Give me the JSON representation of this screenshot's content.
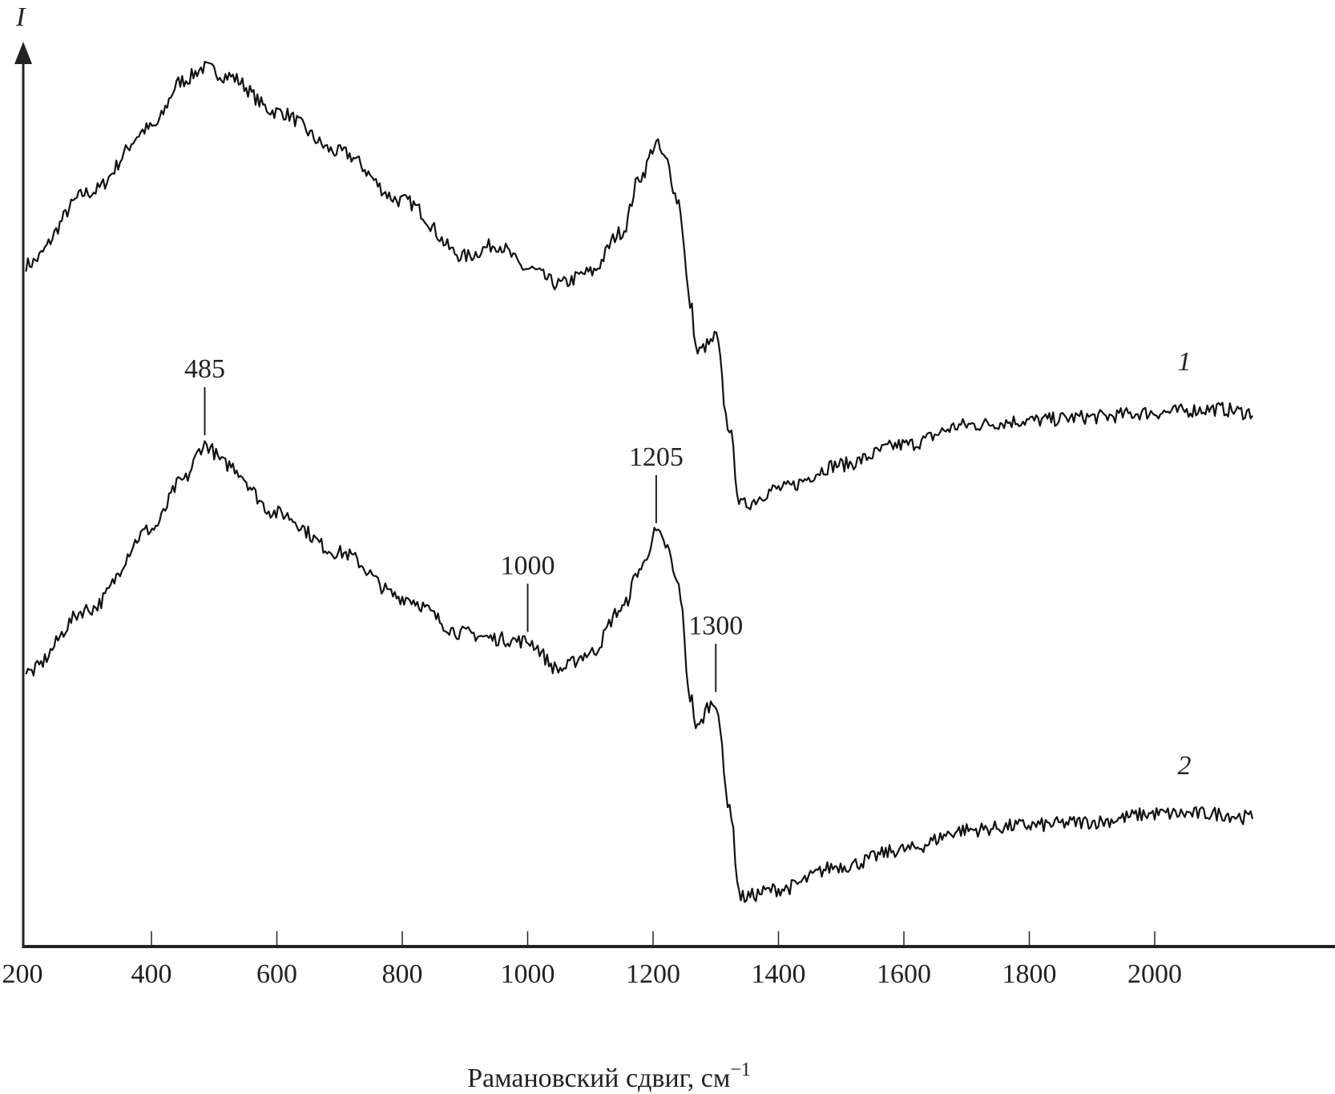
{
  "chart_data": {
    "type": "line",
    "title": "",
    "xlabel": "Рамановский сдвиг, см",
    "xlabel_superscript": "−1",
    "ylabel": "I",
    "xlim": [
      200,
      2157
    ],
    "ylim": [
      0,
      100
    ],
    "y_units": "arbitrary (no tick labels)",
    "grid": false,
    "x_ticks": [
      200,
      400,
      600,
      800,
      1000,
      1200,
      1400,
      1600,
      1800,
      2000
    ],
    "x_tick_labels": [
      "200",
      "400",
      "600",
      "800",
      "1000",
      "1200",
      "1400",
      "1600",
      "1800",
      "2000"
    ],
    "line_color": "#111111",
    "x": [
      200,
      300,
      400,
      450,
      485,
      520,
      600,
      700,
      800,
      900,
      950,
      1000,
      1050,
      1100,
      1150,
      1180,
      1205,
      1220,
      1240,
      1260,
      1270,
      1290,
      1300,
      1320,
      1340,
      1400,
      1500,
      1600,
      1700,
      1800,
      1900,
      2000,
      2100,
      2150
    ],
    "series": [
      {
        "name": "1",
        "values": [
          75.9,
          83.9,
          91.1,
          96.4,
          97.8,
          96.9,
          92.9,
          88.4,
          83.0,
          76.8,
          78.1,
          75.4,
          73.7,
          75.0,
          79.5,
          85.7,
          89.3,
          87.5,
          83.0,
          71.4,
          66.1,
          67.0,
          67.9,
          58.0,
          49.1,
          50.9,
          53.6,
          55.8,
          58.0,
          58.5,
          58.9,
          59.4,
          59.8,
          59.4
        ]
      },
      {
        "name": "2",
        "values": [
          30.4,
          37.5,
          46.4,
          51.8,
          55.8,
          53.6,
          48.2,
          43.8,
          38.8,
          34.8,
          34.2,
          33.9,
          30.8,
          32.6,
          37.5,
          42.0,
          46.0,
          44.6,
          40.2,
          27.7,
          24.1,
          26.8,
          27.2,
          16.1,
          5.4,
          6.3,
          8.9,
          10.7,
          12.9,
          13.4,
          13.8,
          14.7,
          14.7,
          14.3
        ]
      }
    ],
    "annotations": [
      {
        "label": "485",
        "x": 485,
        "series": "2"
      },
      {
        "label": "1000",
        "x": 1000,
        "series": "2"
      },
      {
        "label": "1205",
        "x": 1205,
        "series": "2"
      },
      {
        "label": "1300",
        "x": 1300,
        "series": "2"
      }
    ]
  }
}
